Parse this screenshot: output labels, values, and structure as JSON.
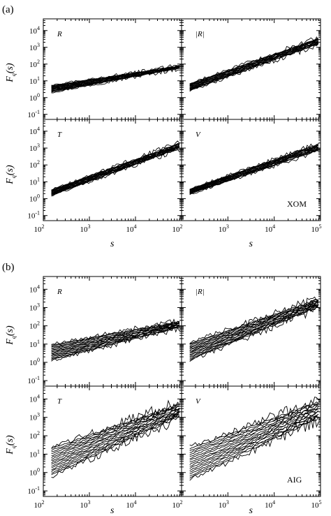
{
  "chart_data": [
    {
      "figure_label": "(a)",
      "stock_label": "XOM",
      "type": "line",
      "x_axis": {
        "label": "s",
        "scale": "log",
        "range": [
          100,
          100000
        ],
        "ticks": [
          {
            "base": "10",
            "exp": "2"
          },
          {
            "base": "10",
            "exp": "3"
          },
          {
            "base": "10",
            "exp": "4"
          },
          {
            "base": "10",
            "exp": "5"
          }
        ]
      },
      "y_axis": {
        "label": "F",
        "label_sub": "q",
        "label_tail": "(s)",
        "scale": "log",
        "range": [
          0.05,
          50000
        ],
        "ticks": [
          {
            "base": "10",
            "exp": "-1"
          },
          {
            "base": "10",
            "exp": "0"
          },
          {
            "base": "10",
            "exp": "1"
          },
          {
            "base": "10",
            "exp": "2"
          },
          {
            "base": "10",
            "exp": "3"
          },
          {
            "base": "10",
            "exp": "4"
          }
        ]
      },
      "grid": false,
      "panels": [
        {
          "label": "R",
          "s_range": [
            150,
            90000
          ],
          "fq_lowest": [
            2.0,
            55
          ],
          "fq_highest": [
            5.5,
            80
          ],
          "noise": 0.03,
          "edge_noise": 0.08
        },
        {
          "label": "|R|",
          "s_range": [
            150,
            90000
          ],
          "fq_lowest": [
            2.5,
            1500
          ],
          "fq_highest": [
            7.0,
            3500
          ],
          "noise": 0.04,
          "edge_noise": 0.12
        },
        {
          "label": "T",
          "s_range": [
            150,
            90000
          ],
          "fq_lowest": [
            1.5,
            900
          ],
          "fq_highest": [
            3.5,
            2000
          ],
          "noise": 0.035,
          "edge_noise": 0.1
        },
        {
          "label": "V",
          "s_range": [
            150,
            90000
          ],
          "fq_lowest": [
            1.8,
            700
          ],
          "fq_highest": [
            3.8,
            1800
          ],
          "noise": 0.035,
          "edge_noise": 0.1
        }
      ]
    },
    {
      "figure_label": "(b)",
      "stock_label": "AIG",
      "type": "line",
      "x_axis": {
        "label": "s",
        "scale": "log",
        "range": [
          100,
          100000
        ],
        "ticks": [
          {
            "base": "10",
            "exp": "2"
          },
          {
            "base": "10",
            "exp": "3"
          },
          {
            "base": "10",
            "exp": "4"
          },
          {
            "base": "10",
            "exp": "5"
          }
        ]
      },
      "y_axis": {
        "label": "F",
        "label_sub": "q",
        "label_tail": "(s)",
        "scale": "log",
        "range": [
          0.05,
          50000
        ],
        "ticks": [
          {
            "base": "10",
            "exp": "-1"
          },
          {
            "base": "10",
            "exp": "0"
          },
          {
            "base": "10",
            "exp": "1"
          },
          {
            "base": "10",
            "exp": "2"
          },
          {
            "base": "10",
            "exp": "3"
          },
          {
            "base": "10",
            "exp": "4"
          }
        ]
      },
      "grid": false,
      "panels": [
        {
          "label": "R",
          "s_range": [
            150,
            90000
          ],
          "fq_lowest": [
            1.2,
            80
          ],
          "fq_highest": [
            10,
            180
          ],
          "noise": 0.04,
          "edge_noise": 0.12
        },
        {
          "label": "|R|",
          "s_range": [
            150,
            90000
          ],
          "fq_lowest": [
            1.2,
            1000
          ],
          "fq_highest": [
            12,
            3000
          ],
          "noise": 0.05,
          "edge_noise": 0.18
        },
        {
          "label": "T",
          "s_range": [
            150,
            90000
          ],
          "fq_lowest": [
            0.6,
            1000
          ],
          "fq_highest": [
            25,
            6000
          ],
          "noise": 0.06,
          "edge_noise": 0.22
        },
        {
          "label": "V",
          "s_range": [
            150,
            90000
          ],
          "fq_lowest": [
            0.4,
            800
          ],
          "fq_highest": [
            25,
            8000
          ],
          "noise": 0.06,
          "edge_noise": 0.22
        }
      ]
    }
  ]
}
